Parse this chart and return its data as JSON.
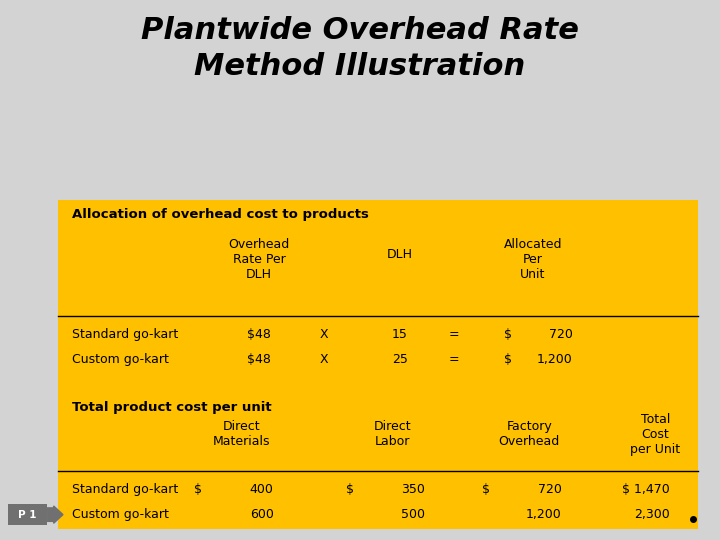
{
  "title_line1": "Plantwide Overhead Rate",
  "title_line2": "Method Illustration",
  "bg_color": "#d3d3d3",
  "table_bg": "#FFC000",
  "title_color": "#000000",
  "section1_header": "Allocation of overhead cost to products",
  "section2_header": "Total product cost per unit",
  "p1_label": "P 1"
}
